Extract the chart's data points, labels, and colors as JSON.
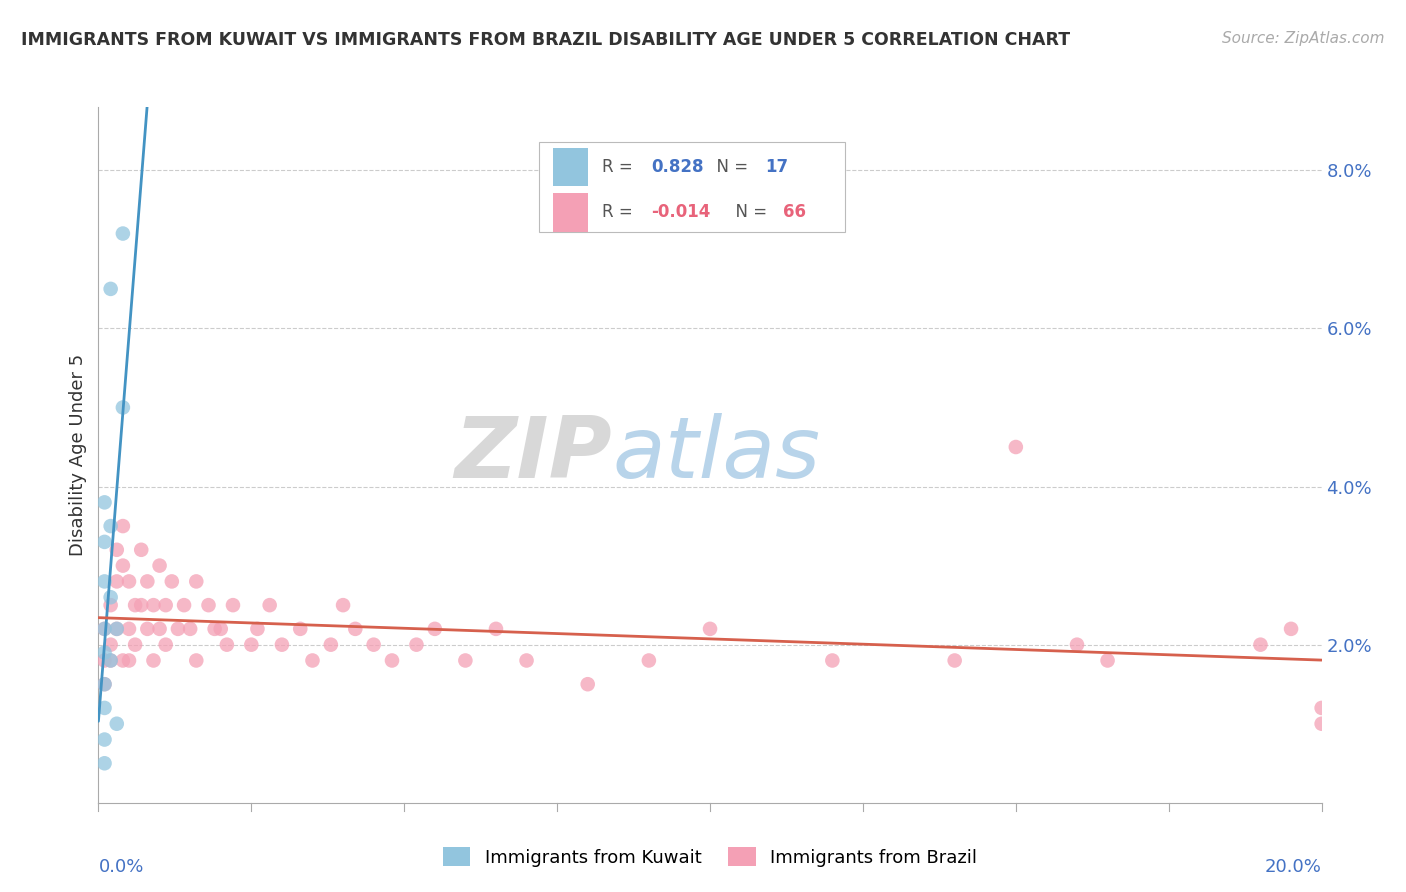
{
  "title": "IMMIGRANTS FROM KUWAIT VS IMMIGRANTS FROM BRAZIL DISABILITY AGE UNDER 5 CORRELATION CHART",
  "source": "Source: ZipAtlas.com",
  "ylabel": "Disability Age Under 5",
  "xlim": [
    0.0,
    0.2
  ],
  "ylim": [
    0.0,
    0.088
  ],
  "yticks": [
    0.0,
    0.02,
    0.04,
    0.06,
    0.08
  ],
  "ytick_labels": [
    "",
    "2.0%",
    "4.0%",
    "6.0%",
    "8.0%"
  ],
  "watermark_zip": "ZIP",
  "watermark_atlas": "atlas",
  "legend_r_kuwait": "0.828",
  "legend_n_kuwait": "17",
  "legend_r_brazil": "-0.014",
  "legend_n_brazil": "66",
  "color_kuwait": "#92c5de",
  "color_brazil": "#f4a0b5",
  "color_trendline_kuwait": "#4393c3",
  "color_trendline_brazil": "#d6604d",
  "kuwait_x": [
    0.004,
    0.002,
    0.001,
    0.001,
    0.001,
    0.001,
    0.001,
    0.001,
    0.001,
    0.001,
    0.001,
    0.002,
    0.002,
    0.002,
    0.003,
    0.004,
    0.003
  ],
  "kuwait_y": [
    0.072,
    0.065,
    0.038,
    0.033,
    0.028,
    0.022,
    0.019,
    0.015,
    0.012,
    0.008,
    0.005,
    0.035,
    0.026,
    0.018,
    0.022,
    0.05,
    0.01
  ],
  "brazil_x": [
    0.001,
    0.001,
    0.001,
    0.002,
    0.002,
    0.002,
    0.003,
    0.003,
    0.003,
    0.004,
    0.004,
    0.004,
    0.005,
    0.005,
    0.005,
    0.006,
    0.006,
    0.007,
    0.007,
    0.008,
    0.008,
    0.009,
    0.009,
    0.01,
    0.01,
    0.011,
    0.011,
    0.012,
    0.013,
    0.014,
    0.015,
    0.016,
    0.016,
    0.018,
    0.019,
    0.02,
    0.021,
    0.022,
    0.025,
    0.026,
    0.028,
    0.03,
    0.033,
    0.035,
    0.038,
    0.04,
    0.042,
    0.045,
    0.048,
    0.052,
    0.055,
    0.06,
    0.065,
    0.07,
    0.08,
    0.09,
    0.1,
    0.12,
    0.14,
    0.15,
    0.16,
    0.165,
    0.19,
    0.195,
    0.2,
    0.2
  ],
  "brazil_y": [
    0.022,
    0.018,
    0.015,
    0.025,
    0.02,
    0.018,
    0.032,
    0.028,
    0.022,
    0.035,
    0.03,
    0.018,
    0.028,
    0.022,
    0.018,
    0.025,
    0.02,
    0.032,
    0.025,
    0.028,
    0.022,
    0.025,
    0.018,
    0.03,
    0.022,
    0.025,
    0.02,
    0.028,
    0.022,
    0.025,
    0.022,
    0.028,
    0.018,
    0.025,
    0.022,
    0.022,
    0.02,
    0.025,
    0.02,
    0.022,
    0.025,
    0.02,
    0.022,
    0.018,
    0.02,
    0.025,
    0.022,
    0.02,
    0.018,
    0.02,
    0.022,
    0.018,
    0.022,
    0.018,
    0.015,
    0.018,
    0.022,
    0.018,
    0.018,
    0.045,
    0.02,
    0.018,
    0.02,
    0.022,
    0.01,
    0.012
  ],
  "trendline_brazil_y_at_0": 0.021,
  "trendline_brazil_y_at_20": 0.02
}
